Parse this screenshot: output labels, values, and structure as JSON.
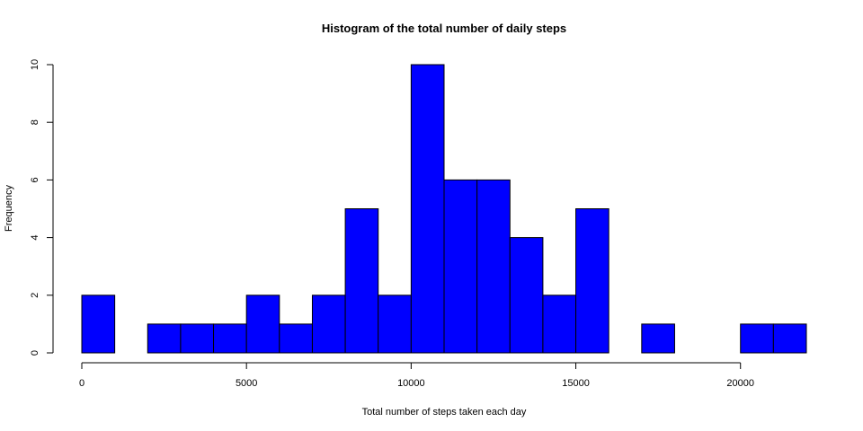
{
  "chart_data": {
    "type": "bar",
    "title": "Histogram of the total number of daily steps",
    "xlabel": "Total number of steps taken each day",
    "ylabel": "Frequency",
    "bar_color": "#0000ff",
    "bin_width": 1000,
    "bins": [
      {
        "start": 0,
        "end": 1000,
        "count": 2
      },
      {
        "start": 1000,
        "end": 2000,
        "count": 0
      },
      {
        "start": 2000,
        "end": 3000,
        "count": 1
      },
      {
        "start": 3000,
        "end": 4000,
        "count": 1
      },
      {
        "start": 4000,
        "end": 5000,
        "count": 1
      },
      {
        "start": 5000,
        "end": 6000,
        "count": 2
      },
      {
        "start": 6000,
        "end": 7000,
        "count": 1
      },
      {
        "start": 7000,
        "end": 8000,
        "count": 2
      },
      {
        "start": 8000,
        "end": 9000,
        "count": 5
      },
      {
        "start": 9000,
        "end": 10000,
        "count": 2
      },
      {
        "start": 10000,
        "end": 11000,
        "count": 10
      },
      {
        "start": 11000,
        "end": 12000,
        "count": 6
      },
      {
        "start": 12000,
        "end": 13000,
        "count": 6
      },
      {
        "start": 13000,
        "end": 14000,
        "count": 4
      },
      {
        "start": 14000,
        "end": 15000,
        "count": 2
      },
      {
        "start": 15000,
        "end": 16000,
        "count": 5
      },
      {
        "start": 16000,
        "end": 17000,
        "count": 0
      },
      {
        "start": 17000,
        "end": 18000,
        "count": 1
      },
      {
        "start": 18000,
        "end": 19000,
        "count": 0
      },
      {
        "start": 19000,
        "end": 20000,
        "count": 0
      },
      {
        "start": 20000,
        "end": 21000,
        "count": 1
      },
      {
        "start": 21000,
        "end": 22000,
        "count": 1
      }
    ],
    "xlim": [
      0,
      22000
    ],
    "ylim": [
      0,
      10
    ],
    "xticks": [
      0,
      5000,
      10000,
      15000,
      20000
    ],
    "yticks": [
      0,
      2,
      4,
      6,
      8,
      10
    ],
    "grid": false,
    "legend": "none"
  }
}
